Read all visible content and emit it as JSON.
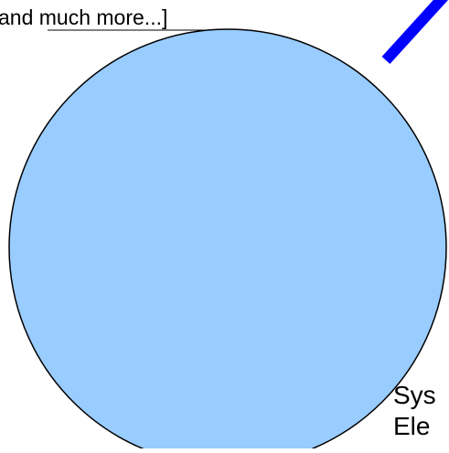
{
  "top_text": "and much more...]",
  "system_label": {
    "line1": "Sys",
    "line2": "Ele"
  },
  "colors": {
    "circle_fill": "#99CCFF",
    "circle_stroke": "#000000",
    "connector": "#0000FF",
    "text": "#000000",
    "background": "#FFFFFF"
  }
}
